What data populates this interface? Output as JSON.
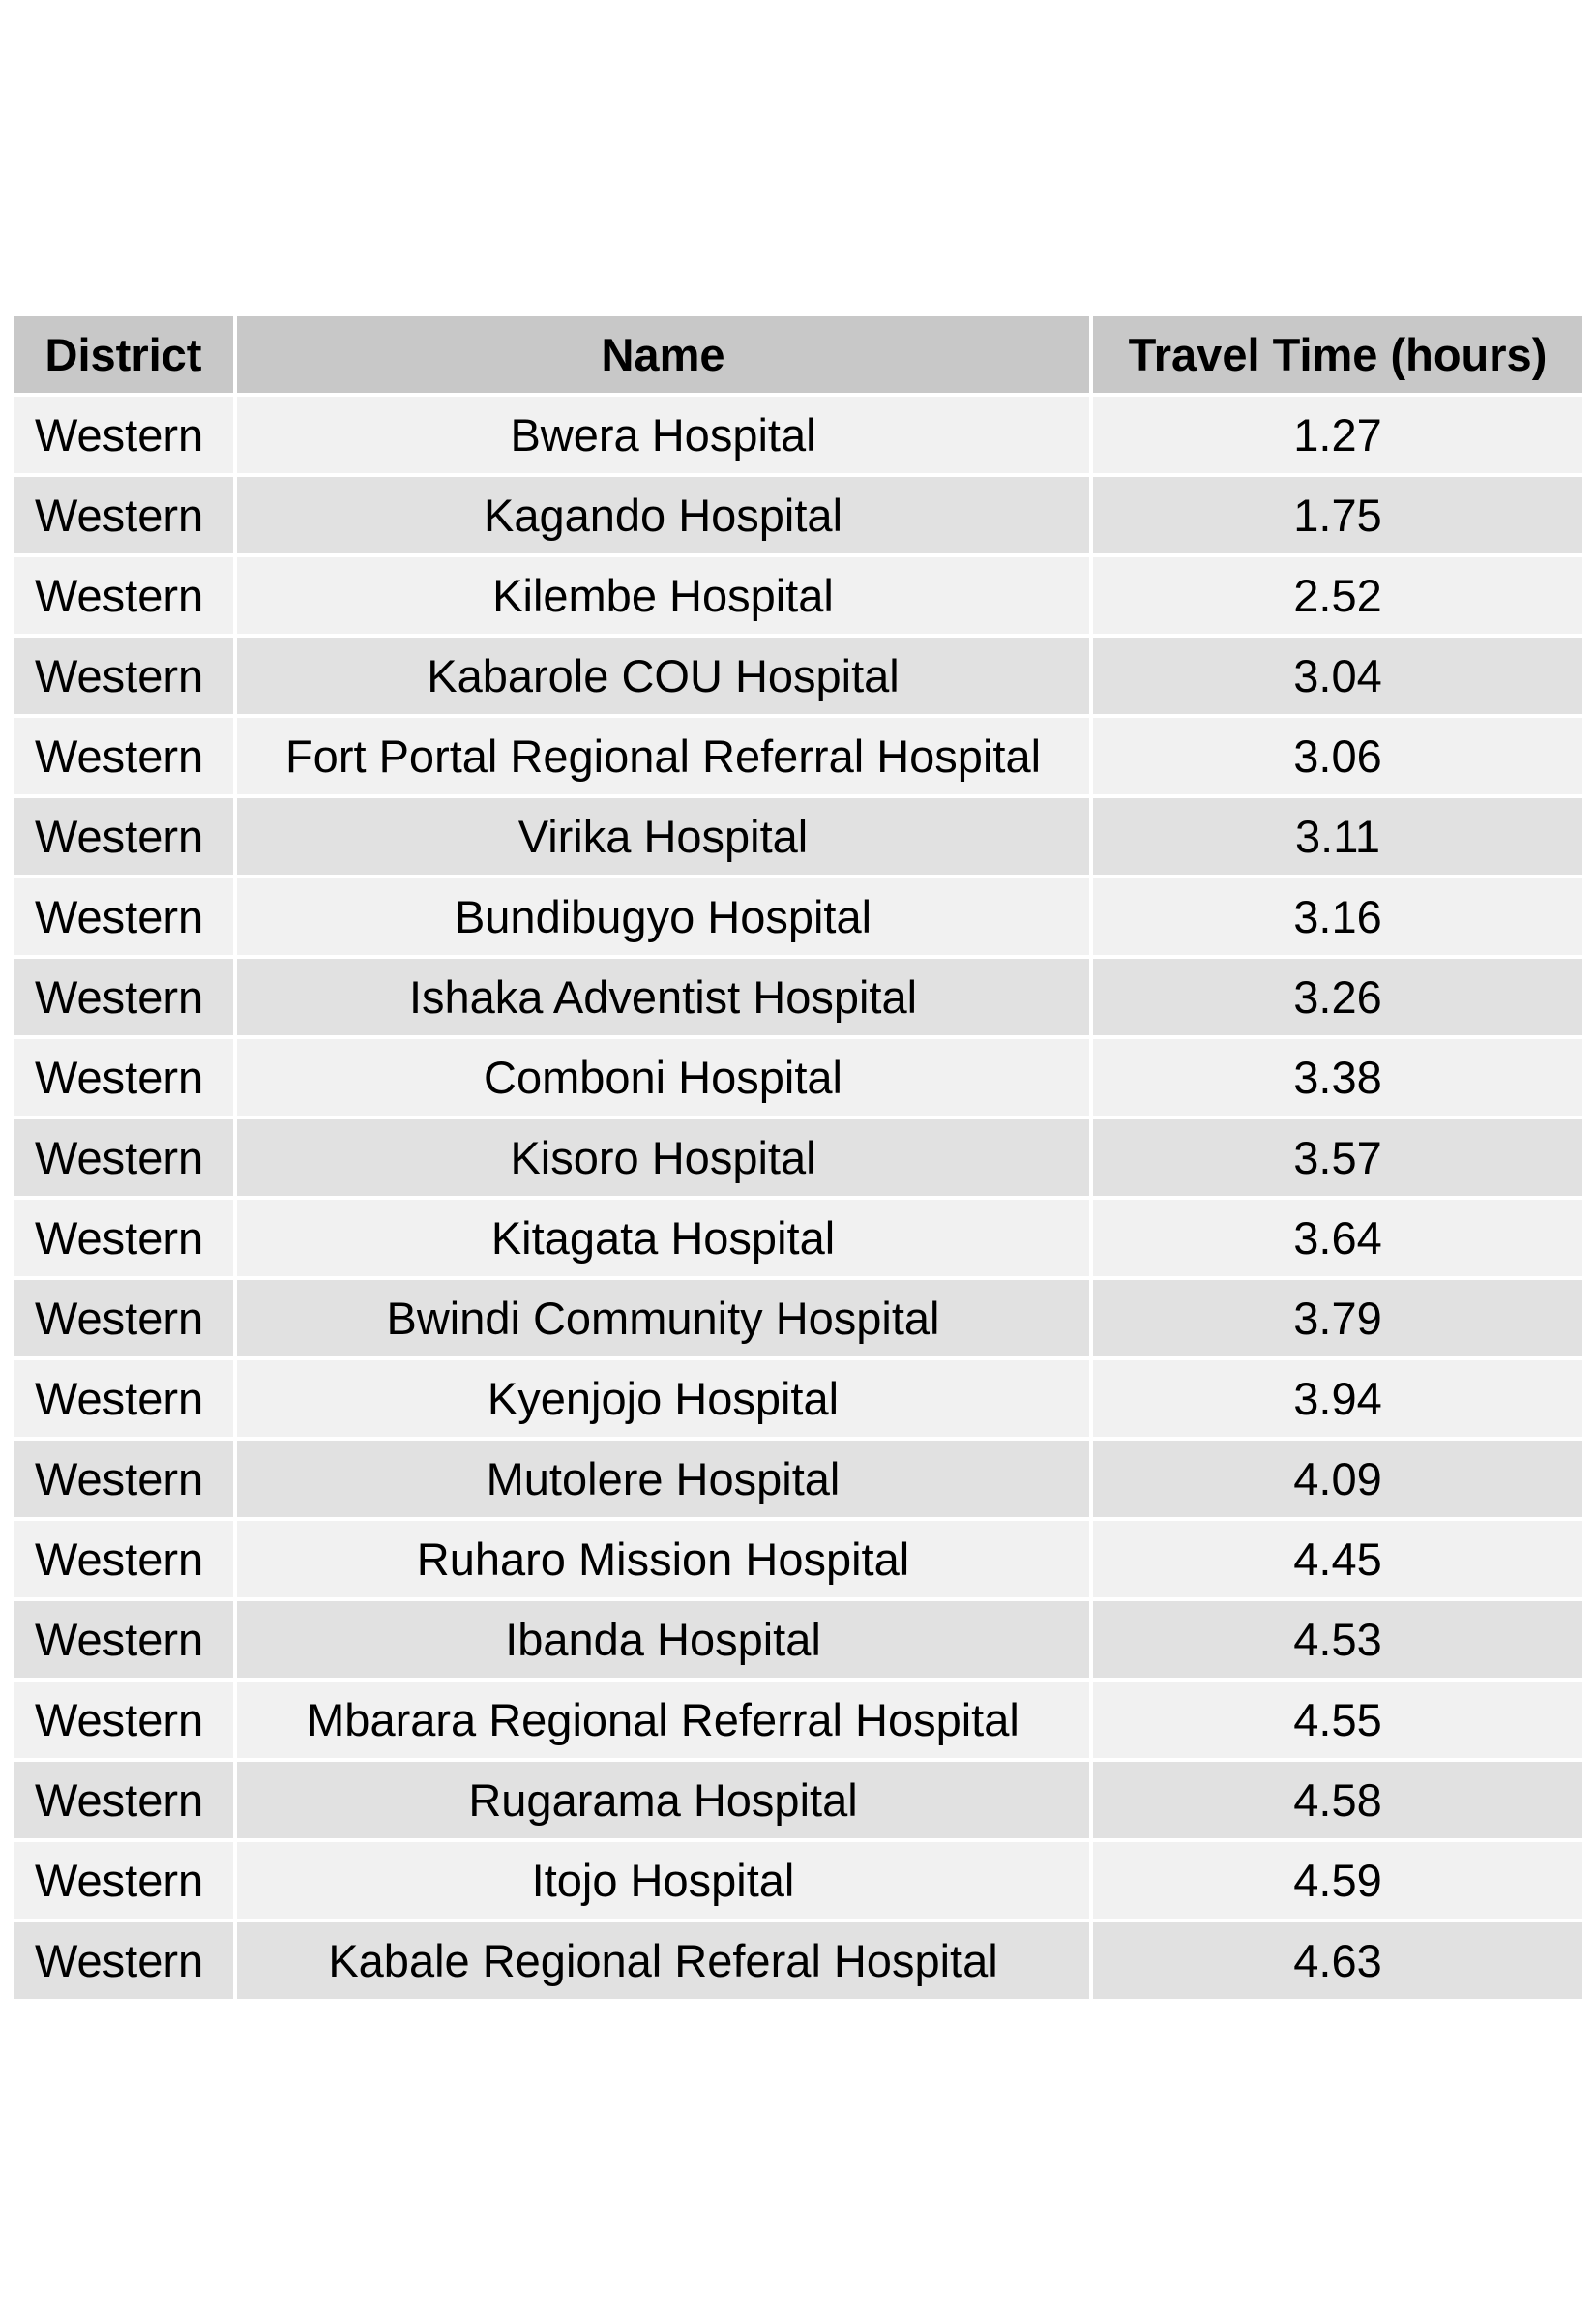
{
  "table": {
    "headers": [
      "District",
      "Name",
      "Travel Time (hours)"
    ],
    "rows": [
      {
        "district": "Western",
        "name": "Bwera Hospital",
        "travel_time": "1.27"
      },
      {
        "district": "Western",
        "name": "Kagando Hospital",
        "travel_time": "1.75"
      },
      {
        "district": "Western",
        "name": "Kilembe Hospital",
        "travel_time": "2.52"
      },
      {
        "district": "Western",
        "name": "Kabarole COU Hospital",
        "travel_time": "3.04"
      },
      {
        "district": "Western",
        "name": "Fort Portal Regional Referral Hospital",
        "travel_time": "3.06"
      },
      {
        "district": "Western",
        "name": "Virika Hospital",
        "travel_time": "3.11"
      },
      {
        "district": "Western",
        "name": "Bundibugyo Hospital",
        "travel_time": "3.16"
      },
      {
        "district": "Western",
        "name": "Ishaka Adventist Hospital",
        "travel_time": "3.26"
      },
      {
        "district": "Western",
        "name": "Comboni Hospital",
        "travel_time": "3.38"
      },
      {
        "district": "Western",
        "name": "Kisoro Hospital",
        "travel_time": "3.57"
      },
      {
        "district": "Western",
        "name": "Kitagata Hospital",
        "travel_time": "3.64"
      },
      {
        "district": "Western",
        "name": "Bwindi Community Hospital",
        "travel_time": "3.79"
      },
      {
        "district": "Western",
        "name": "Kyenjojo Hospital",
        "travel_time": "3.94"
      },
      {
        "district": "Western",
        "name": "Mutolere Hospital",
        "travel_time": "4.09"
      },
      {
        "district": "Western",
        "name": "Ruharo Mission Hospital",
        "travel_time": "4.45"
      },
      {
        "district": "Western",
        "name": "Ibanda Hospital",
        "travel_time": "4.53"
      },
      {
        "district": "Western",
        "name": "Mbarara Regional Referral Hospital",
        "travel_time": "4.55"
      },
      {
        "district": "Western",
        "name": "Rugarama Hospital",
        "travel_time": "4.58"
      },
      {
        "district": "Western",
        "name": "Itojo Hospital",
        "travel_time": "4.59"
      },
      {
        "district": "Western",
        "name": "Kabale Regional Referal Hospital",
        "travel_time": "4.63"
      }
    ]
  },
  "colors": {
    "header_bg": "#c8c8c8",
    "row_odd_bg": "#f1f1f1",
    "row_even_bg": "#e1e1e1",
    "cell_border": "#ffffff"
  }
}
